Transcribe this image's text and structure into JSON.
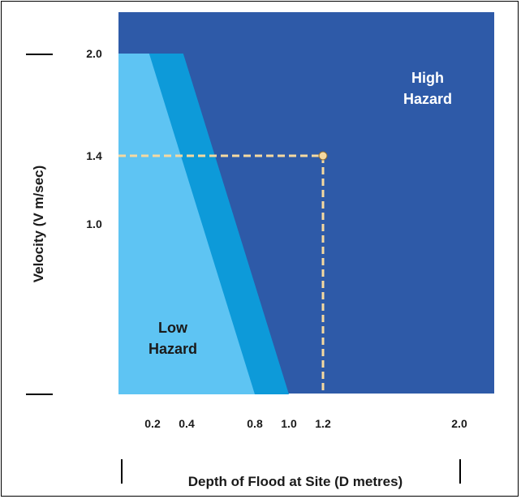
{
  "chart_data": {
    "type": "area",
    "title": "",
    "xlabel": "Depth of Flood at Site (D metres)",
    "ylabel": "Velocity (V m/sec)",
    "xlim": [
      0,
      2.4
    ],
    "ylim": [
      0,
      2.25
    ],
    "x_ticks": [
      {
        "value": 0.2,
        "label": "0.2"
      },
      {
        "value": 0.4,
        "label": "0.4"
      },
      {
        "value": 0.8,
        "label": "0.8"
      },
      {
        "value": 1.0,
        "label": "1.0"
      },
      {
        "value": 1.2,
        "label": "1.2"
      },
      {
        "value": 2.0,
        "label": "2.0"
      }
    ],
    "y_ticks": [
      {
        "value": 2.0,
        "label": "2.0"
      },
      {
        "value": 1.4,
        "label": "1.4"
      },
      {
        "value": 1.0,
        "label": "1.0"
      }
    ],
    "regions": [
      {
        "name": "Low Hazard",
        "label_lines": [
          "Low",
          "Hazard"
        ],
        "color": "#5ec4f3",
        "boundary": [
          [
            0,
            2.0
          ],
          [
            0.18,
            2.0
          ],
          [
            0.8,
            0
          ]
        ]
      },
      {
        "name": "transition",
        "color": "#0d9ad9",
        "boundary": [
          [
            0.18,
            2.0
          ],
          [
            0.38,
            2.0
          ],
          [
            1.0,
            0
          ]
        ]
      },
      {
        "name": "High Hazard",
        "label_lines": [
          "High",
          "Hazard"
        ],
        "color": "#2e5aa8"
      }
    ],
    "highlight_point": {
      "x": 1.2,
      "y": 1.4,
      "color": "#f5d9a0"
    }
  }
}
